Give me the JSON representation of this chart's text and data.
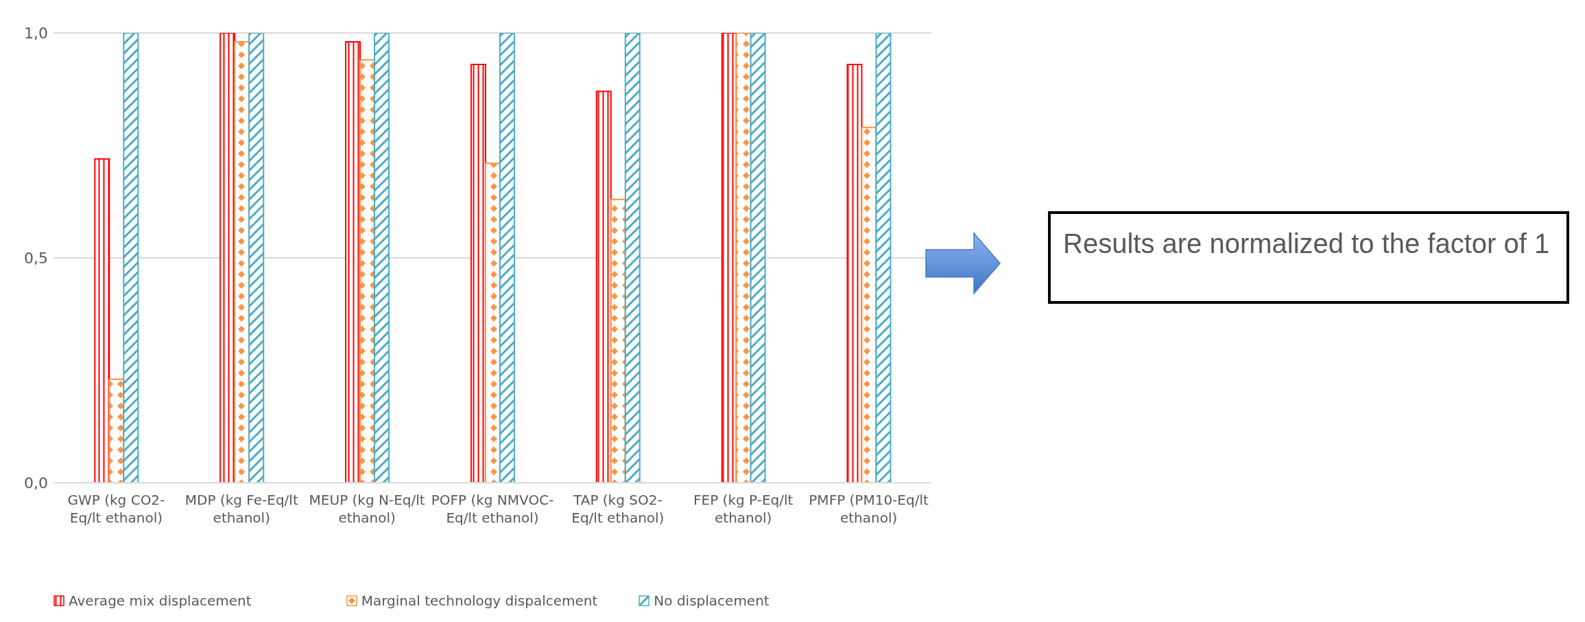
{
  "chart_data": {
    "type": "bar",
    "categories": [
      "GWP (kg CO2-Eq/lt ethanol)",
      "MDP (kg Fe-Eq/lt ethanol)",
      "MEUP (kg N-Eq/lt ethanol)",
      "POFP (kg NMVOC-Eq/lt ethanol)",
      "TAP (kg SO2-Eq/lt ethanol)",
      "FEP (kg P-Eq/lt ethanol)",
      "PMFP (PM10-Eq/lt ethanol)"
    ],
    "series": [
      {
        "name": "Average mix displacement",
        "color": "#ff0000",
        "values": [
          0.72,
          1.0,
          0.98,
          0.93,
          0.87,
          1.0,
          0.93
        ]
      },
      {
        "name": "Marginal technology dispalcement",
        "color": "#f79646",
        "values": [
          0.23,
          0.98,
          0.94,
          0.71,
          0.63,
          1.0,
          0.79
        ]
      },
      {
        "name": "No displacement",
        "color": "#4bacc6",
        "values": [
          1.0,
          1.0,
          1.0,
          1.0,
          1.0,
          1.0,
          1.0
        ]
      }
    ],
    "ylim": [
      0,
      1
    ],
    "yticks": [
      {
        "value": 0,
        "label": "0,0"
      },
      {
        "value": 0.5,
        "label": "0,5"
      },
      {
        "value": 1,
        "label": "1,0"
      }
    ],
    "grid": "y",
    "legend": "bottom",
    "annotations": [
      "Results are normalized to the factor of 1"
    ]
  }
}
